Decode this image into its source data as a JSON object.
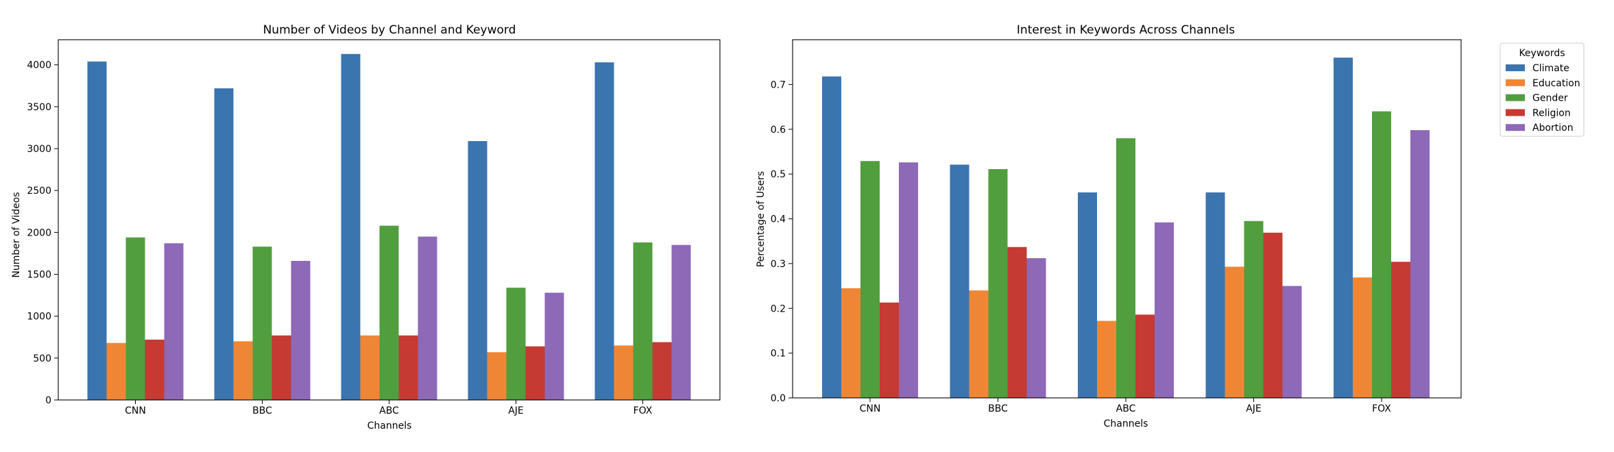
{
  "chart_data": [
    {
      "type": "bar",
      "title": "Number of Videos by Channel and Keyword",
      "xlabel": "Channels",
      "ylabel": "Number of Videos",
      "categories": [
        "CNN",
        "BBC",
        "ABC",
        "AJE",
        "FOX"
      ],
      "ylim": [
        0,
        4300
      ],
      "yticks": [
        "0",
        "500",
        "1000",
        "1500",
        "2000",
        "2500",
        "3000",
        "3500",
        "4000"
      ],
      "series": [
        {
          "name": "Climate",
          "color": "#3b75af",
          "values": [
            4040,
            3720,
            4130,
            3090,
            4030
          ]
        },
        {
          "name": "Education",
          "color": "#ef8636",
          "values": [
            680,
            700,
            770,
            570,
            650
          ]
        },
        {
          "name": "Gender",
          "color": "#519e3e",
          "values": [
            1940,
            1830,
            2080,
            1340,
            1880
          ]
        },
        {
          "name": "Religion",
          "color": "#c53a32",
          "values": [
            720,
            770,
            770,
            640,
            690
          ]
        },
        {
          "name": "Abortion",
          "color": "#8d69b8",
          "values": [
            1870,
            1660,
            1950,
            1280,
            1850
          ]
        }
      ]
    },
    {
      "type": "bar",
      "title": "Interest in Keywords Across Channels",
      "xlabel": "Channels",
      "ylabel": "Percentage of Users",
      "categories": [
        "CNN",
        "BBC",
        "ABC",
        "AJE",
        "FOX"
      ],
      "ylim": [
        0,
        0.8
      ],
      "yticks": [
        "0.0",
        "0.1",
        "0.2",
        "0.3",
        "0.4",
        "0.5",
        "0.6",
        "0.7"
      ],
      "legend_title": "Keywords",
      "legend_position": "outside-right-top",
      "series": [
        {
          "name": "Climate",
          "color": "#3b75af",
          "values": [
            0.718,
            0.521,
            0.459,
            0.459,
            0.76
          ]
        },
        {
          "name": "Education",
          "color": "#ef8636",
          "values": [
            0.245,
            0.24,
            0.172,
            0.293,
            0.269
          ]
        },
        {
          "name": "Gender",
          "color": "#519e3e",
          "values": [
            0.529,
            0.511,
            0.58,
            0.395,
            0.64
          ]
        },
        {
          "name": "Religion",
          "color": "#c53a32",
          "values": [
            0.213,
            0.337,
            0.186,
            0.369,
            0.304
          ]
        },
        {
          "name": "Abortion",
          "color": "#8d69b8",
          "values": [
            0.526,
            0.312,
            0.392,
            0.25,
            0.598
          ]
        }
      ]
    }
  ]
}
